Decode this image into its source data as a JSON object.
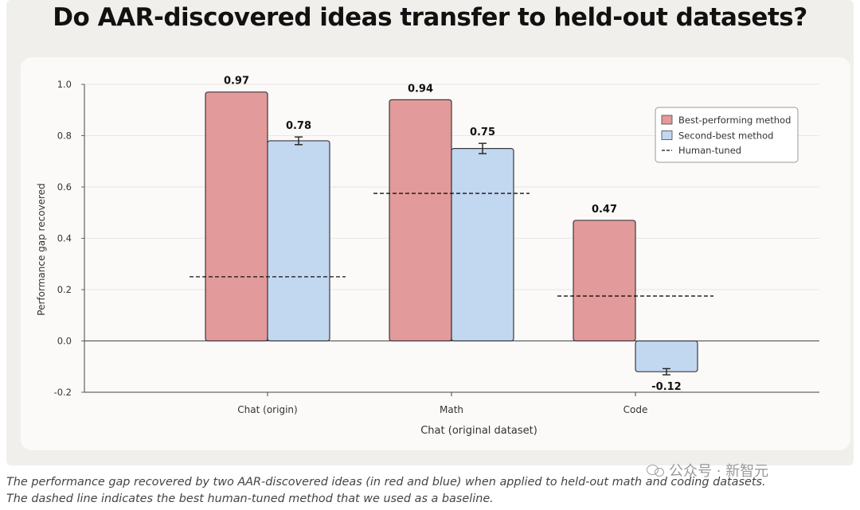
{
  "header": {
    "title": "Do AAR-discovered ideas transfer to held-out datasets?"
  },
  "caption": {
    "line1": "The performance gap recovered by two AAR-discovered ideas (in red and blue) when applied to held-out math and coding datasets.",
    "line2": "The dashed line indicates the best human-tuned method that we used as a baseline."
  },
  "watermark": {
    "text": "公众号 · 新智元",
    "icon": "wechat-icon"
  },
  "colors": {
    "best": "#e39a9a",
    "second": "#c2d7f0",
    "bar_stroke": "#3a3a3a",
    "grid": "#e7e6e3",
    "text": "#222222"
  },
  "chart_data": {
    "type": "bar",
    "xlabel": "Chat (original dataset)",
    "ylabel": "Performance gap recovered",
    "ylim": [
      -0.2,
      1.0
    ],
    "yticks": [
      -0.2,
      0.0,
      0.2,
      0.4,
      0.6,
      0.8,
      1.0
    ],
    "ytick_labels": [
      "-0.2",
      "0.0",
      "0.2",
      "0.4",
      "0.6",
      "0.8",
      "1.0"
    ],
    "grid": true,
    "legend_position": "top-right",
    "categories": [
      "Chat (origin)",
      "Math",
      "Code"
    ],
    "series": [
      {
        "name": "Best-performing method",
        "color": "#e39a9a",
        "values": [
          0.97,
          0.94,
          0.47
        ],
        "labels": [
          "0.97",
          "0.94",
          "0.47"
        ],
        "error": [
          0,
          0,
          0
        ]
      },
      {
        "name": "Second-best method",
        "color": "#c2d7f0",
        "values": [
          0.78,
          0.75,
          -0.12
        ],
        "labels": [
          "0.78",
          "0.75",
          "-0.12"
        ],
        "error": [
          0.015,
          0.02,
          0.012
        ]
      }
    ],
    "baseline": {
      "name": "Human-tuned",
      "style": "dashed",
      "values": [
        0.25,
        0.575,
        0.175
      ]
    }
  }
}
